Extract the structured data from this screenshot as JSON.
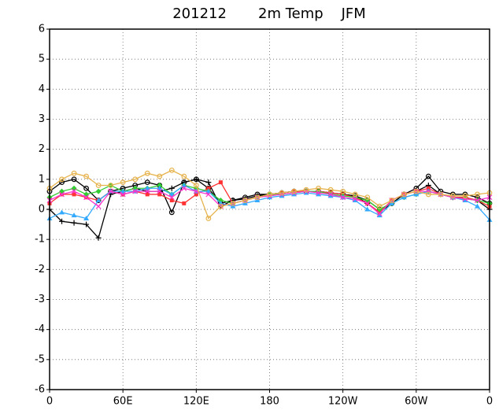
{
  "chart_data": {
    "type": "line",
    "title": "201212       2m Temp    JFM",
    "x": [
      0,
      10,
      20,
      30,
      40,
      50,
      60,
      70,
      80,
      90,
      100,
      110,
      120,
      130,
      140,
      150,
      160,
      170,
      180,
      190,
      200,
      210,
      220,
      230,
      240,
      250,
      260,
      270,
      280,
      290,
      300,
      310,
      320,
      330,
      340,
      350,
      360
    ],
    "xlim": [
      0,
      360
    ],
    "xticks": [
      0,
      {
        "value": 60,
        "label": "60E"
      },
      {
        "value": 120,
        "label": "120E"
      },
      180,
      {
        "value": 240,
        "label": "120W"
      },
      {
        "value": 300,
        "label": "60W"
      },
      {
        "value": 360,
        "label": "0"
      }
    ],
    "ylim": [
      -6,
      6
    ],
    "yticks": [
      -6,
      -5,
      -4,
      -3,
      -2,
      -1,
      0,
      1,
      2,
      3,
      4,
      5,
      6
    ],
    "grid": true,
    "series": [
      {
        "color": "#000000",
        "marker": "circle",
        "values": [
          0.6,
          0.9,
          1.0,
          0.7,
          0.3,
          0.6,
          0.7,
          0.8,
          0.9,
          0.8,
          -0.1,
          0.9,
          1.0,
          0.7,
          0.2,
          0.3,
          0.4,
          0.5,
          0.5,
          0.55,
          0.6,
          0.6,
          0.6,
          0.55,
          0.5,
          0.45,
          0.3,
          0.0,
          0.2,
          0.5,
          0.7,
          1.1,
          0.6,
          0.5,
          0.5,
          0.4,
          0.2
        ]
      },
      {
        "color": "#000000",
        "marker": "plus",
        "values": [
          0.0,
          -0.4,
          -0.45,
          -0.5,
          -0.95,
          0.5,
          0.6,
          0.7,
          0.6,
          0.6,
          0.7,
          0.9,
          1.0,
          0.9,
          0.1,
          0.3,
          0.35,
          0.45,
          0.5,
          0.55,
          0.6,
          0.6,
          0.6,
          0.55,
          0.5,
          0.45,
          0.2,
          -0.1,
          0.2,
          0.5,
          0.6,
          0.8,
          0.5,
          0.4,
          0.4,
          0.3,
          0.0
        ]
      },
      {
        "color": "#ff3333",
        "marker": "square",
        "values": [
          0.2,
          0.5,
          0.5,
          0.4,
          0.3,
          0.6,
          0.5,
          0.6,
          0.5,
          0.5,
          0.3,
          0.2,
          0.5,
          0.7,
          0.9,
          0.2,
          0.3,
          0.4,
          0.5,
          0.55,
          0.6,
          0.6,
          0.6,
          0.55,
          0.5,
          0.4,
          0.2,
          -0.1,
          0.3,
          0.5,
          0.6,
          0.7,
          0.5,
          0.4,
          0.4,
          0.3,
          0.1
        ]
      },
      {
        "color": "#33cc33",
        "marker": "diamond",
        "values": [
          0.4,
          0.6,
          0.7,
          0.5,
          0.6,
          0.8,
          0.6,
          0.7,
          0.7,
          0.8,
          0.5,
          0.8,
          0.7,
          0.6,
          0.3,
          0.2,
          0.3,
          0.4,
          0.5,
          0.5,
          0.55,
          0.6,
          0.6,
          0.5,
          0.45,
          0.4,
          0.3,
          0.0,
          0.2,
          0.4,
          0.5,
          0.6,
          0.5,
          0.4,
          0.35,
          0.3,
          0.2
        ]
      },
      {
        "color": "#33aaff",
        "marker": "triangle",
        "values": [
          -0.3,
          -0.1,
          -0.2,
          -0.3,
          0.3,
          0.6,
          0.6,
          0.6,
          0.7,
          0.7,
          0.5,
          0.8,
          0.6,
          0.6,
          0.2,
          0.1,
          0.2,
          0.3,
          0.4,
          0.45,
          0.5,
          0.55,
          0.5,
          0.45,
          0.4,
          0.3,
          0.0,
          -0.2,
          0.2,
          0.4,
          0.5,
          0.6,
          0.5,
          0.4,
          0.3,
          0.1,
          -0.35
        ]
      },
      {
        "color": "#ff33cc",
        "marker": "x",
        "values": [
          0.3,
          0.5,
          0.6,
          0.4,
          0.1,
          0.6,
          0.5,
          0.6,
          0.6,
          0.6,
          0.4,
          0.7,
          0.6,
          0.5,
          0.1,
          0.2,
          0.3,
          0.4,
          0.45,
          0.5,
          0.55,
          0.6,
          0.55,
          0.5,
          0.4,
          0.35,
          0.2,
          -0.15,
          0.3,
          0.5,
          0.6,
          0.6,
          0.5,
          0.4,
          0.35,
          0.3,
          0.4
        ]
      },
      {
        "color": "#e6b34d",
        "marker": "circle",
        "values": [
          0.7,
          1.0,
          1.2,
          1.1,
          0.8,
          0.8,
          0.9,
          1.0,
          1.2,
          1.1,
          1.3,
          1.1,
          0.8,
          -0.3,
          0.1,
          0.2,
          0.3,
          0.4,
          0.5,
          0.55,
          0.6,
          0.65,
          0.7,
          0.65,
          0.6,
          0.5,
          0.4,
          0.1,
          0.3,
          0.5,
          0.6,
          0.5,
          0.5,
          0.45,
          0.45,
          0.5,
          0.55
        ]
      }
    ]
  }
}
